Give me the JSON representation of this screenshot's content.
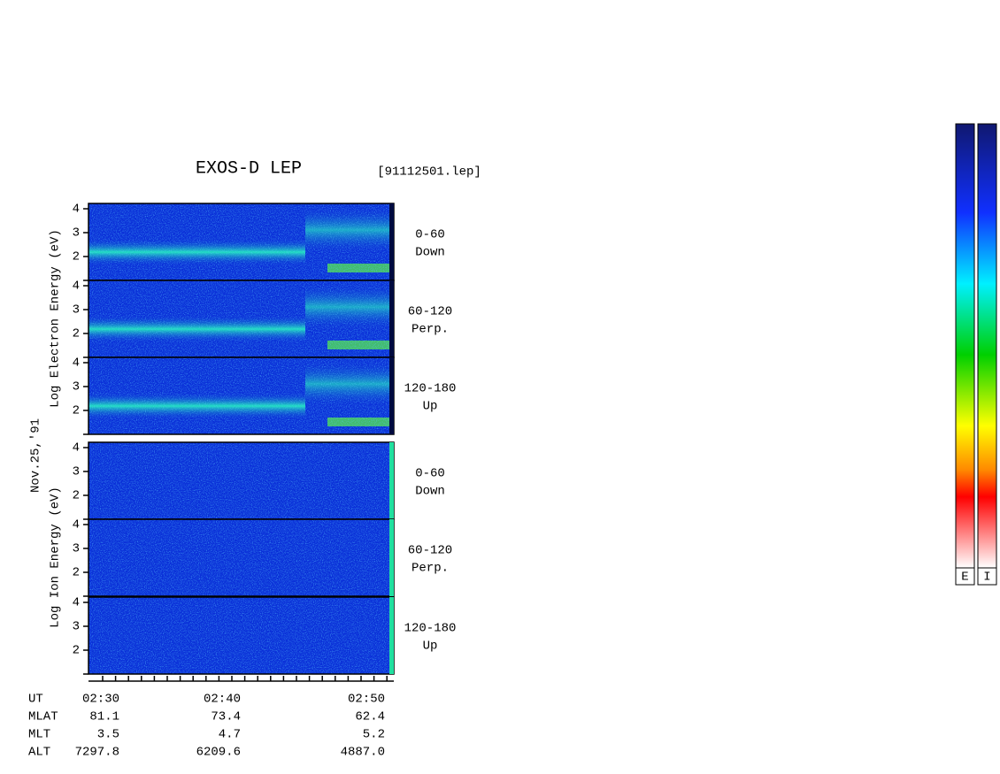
{
  "title": "EXOS-D LEP",
  "file": "[91112501.lep]",
  "date": "Nov.25,'91",
  "axis_labels": {
    "electron": "Log  Electron  Energy (eV)",
    "ion": "Log  Ion  Energy (eV)"
  },
  "panels": [
    {
      "angle": "0-60",
      "direction": "Down"
    },
    {
      "angle": "60-120",
      "direction": "Perp."
    },
    {
      "angle": "120-180",
      "direction": "Up"
    },
    {
      "angle": "0-60",
      "direction": "Down"
    },
    {
      "angle": "60-120",
      "direction": "Perp."
    },
    {
      "angle": "120-180",
      "direction": "Up"
    }
  ],
  "yticks": [
    "4",
    "3",
    "2"
  ],
  "ephemeris": {
    "labels": [
      "UT",
      "MLAT",
      "MLT",
      "ALT"
    ],
    "columns": [
      [
        "02:30",
        "81.1",
        "3.5",
        "7297.8"
      ],
      [
        "02:40",
        "73.4",
        "4.7",
        "6209.6"
      ],
      [
        "02:50",
        "62.4",
        "5.2",
        "4887.0"
      ]
    ]
  },
  "colorbars": [
    "E",
    "I"
  ]
}
